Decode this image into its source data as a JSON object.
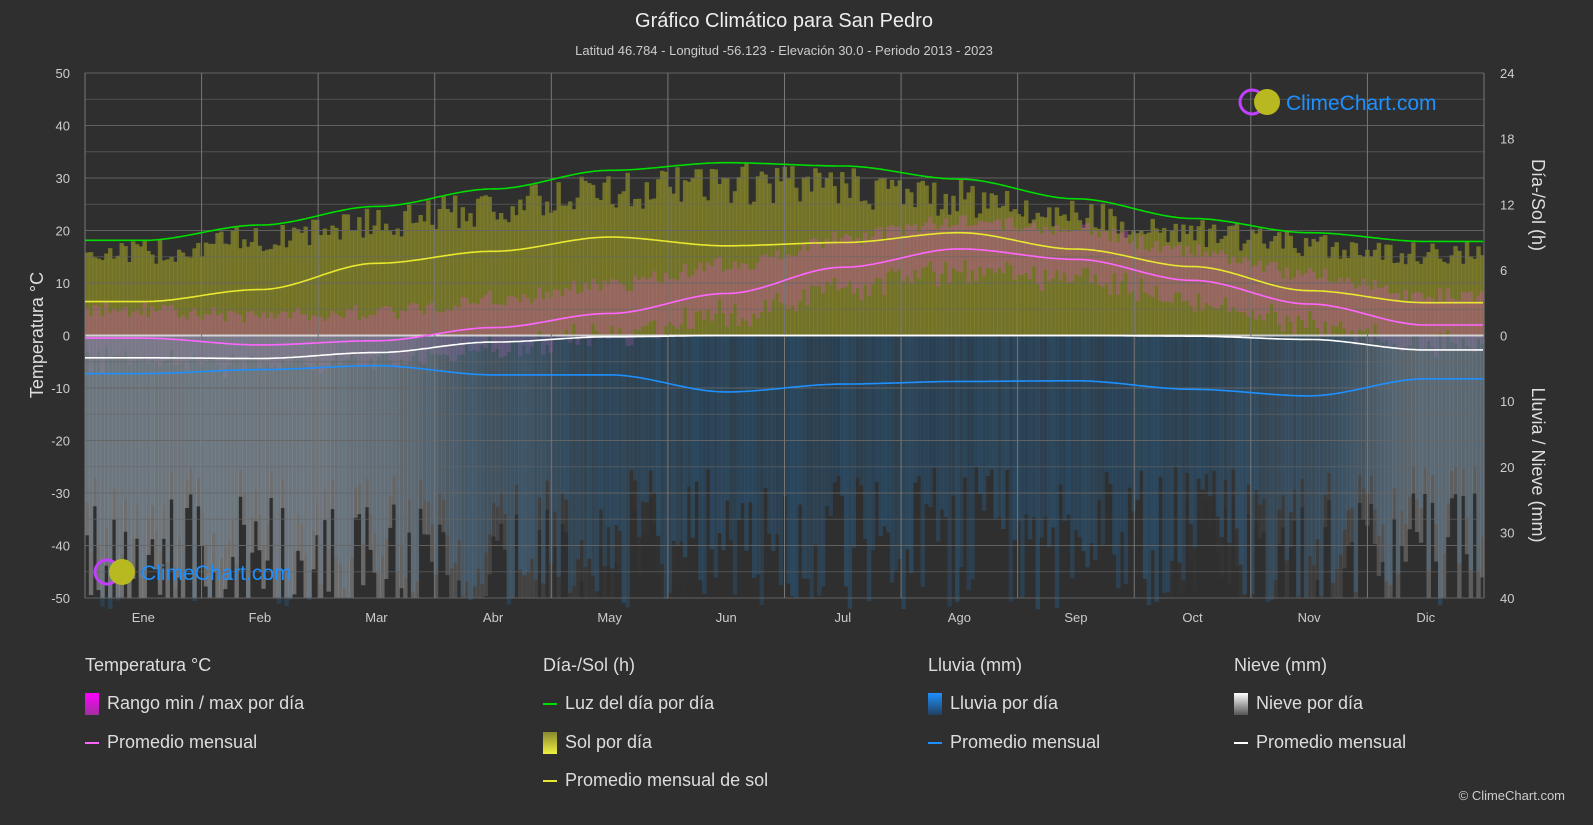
{
  "title": "Gráfico Climático para San Pedro",
  "subtitle": "Latitud 46.784 - Longitud -56.123 - Elevación 30.0 - Periodo 2013 - 2023",
  "watermark": "ClimeChart.com",
  "copyright": "© ClimeChart.com",
  "colors": {
    "temp": "#ff66ff",
    "daylight": "#00dd00",
    "sun": "#e8e830",
    "rain": "#1e90ff",
    "snow": "#ffffff"
  },
  "legend": {
    "temp": {
      "header": "Temperatura °C",
      "range": "Rango min / max por día",
      "avg": "Promedio mensual"
    },
    "sun": {
      "header": "Día-/Sol (h)",
      "daylight": "Luz del día por día",
      "sun": "Sol por día",
      "avg": "Promedio mensual de sol"
    },
    "rain": {
      "header": "Lluvia (mm)",
      "daily": "Lluvia por día",
      "avg": "Promedio mensual"
    },
    "snow": {
      "header": "Nieve (mm)",
      "daily": "Nieve por día",
      "avg": "Promedio mensual"
    }
  },
  "chart_data": {
    "type": "line",
    "title": "Gráfico Climático para San Pedro",
    "categories": [
      "Ene",
      "Feb",
      "Mar",
      "Abr",
      "May",
      "Jun",
      "Jul",
      "Ago",
      "Sep",
      "Oct",
      "Nov",
      "Dic"
    ],
    "ylabel_left": "Temperatura °C",
    "ylabel_right_top": "Día-/Sol (h)",
    "ylabel_right_bottom": "Lluvia / Nieve (mm)",
    "ylim_left": [
      -50,
      50
    ],
    "yticks_left": [
      "50",
      "40",
      "30",
      "20",
      "10",
      "0",
      "-10",
      "-20",
      "-30",
      "-40",
      "-50"
    ],
    "yticks_right_top": [
      "24",
      "18",
      "12",
      "6",
      "0"
    ],
    "yticks_right_bottom": [
      "10",
      "20",
      "30",
      "40"
    ],
    "grid": true,
    "series": [
      {
        "name": "Temperatura promedio mensual",
        "unit": "°C",
        "values": [
          -0.5,
          -1.8,
          -1.0,
          1.5,
          4.2,
          8.0,
          13.0,
          16.5,
          14.5,
          10.5,
          6.0,
          2.0
        ]
      },
      {
        "name": "Luz del día",
        "unit": "h",
        "values": [
          8.7,
          10.1,
          11.8,
          13.4,
          15.1,
          15.8,
          15.5,
          14.3,
          12.5,
          10.7,
          9.4,
          8.6
        ]
      },
      {
        "name": "Promedio mensual de sol",
        "unit": "h",
        "values": [
          3.1,
          4.2,
          6.6,
          7.7,
          9.0,
          8.2,
          8.5,
          9.4,
          7.9,
          6.3,
          4.1,
          3.0
        ]
      },
      {
        "name": "Lluvia promedio mensual",
        "unit": "mm",
        "values": [
          5.8,
          5.2,
          4.6,
          6.0,
          6.0,
          8.6,
          7.4,
          7.0,
          6.9,
          8.2,
          9.2,
          6.6
        ]
      },
      {
        "name": "Nieve promedio mensual",
        "unit": "mm",
        "values": [
          3.4,
          3.5,
          2.6,
          1.0,
          0.2,
          0.0,
          0.0,
          0.0,
          0.0,
          0.1,
          0.6,
          2.2
        ]
      }
    ]
  }
}
